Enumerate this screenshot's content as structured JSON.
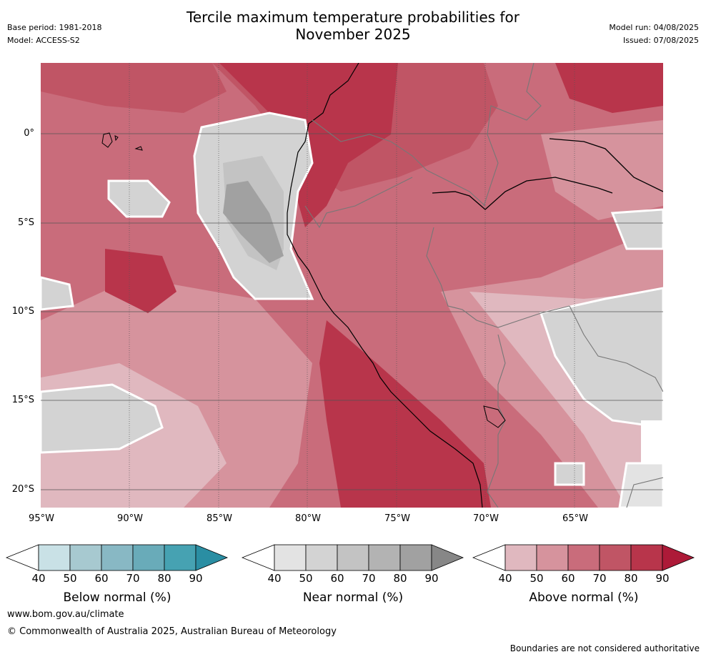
{
  "header": {
    "title_line1": "Tercile maximum temperature probabilities for",
    "title_line2": "November 2025",
    "base_period": "Base period: 1981-2018",
    "model": "Model: ACCESS-S2",
    "model_run": "Model run: 04/08/2025",
    "issued": "Issued: 07/08/2025"
  },
  "axes": {
    "lat_labels": [
      "0°",
      "5°S",
      "10°S",
      "15°S",
      "20°S"
    ],
    "lon_labels": [
      "95°W",
      "90°W",
      "85°W",
      "80°W",
      "75°W",
      "70°W",
      "65°W"
    ]
  },
  "legends": [
    {
      "title": "Below normal (%)",
      "ticks": [
        "40",
        "50",
        "60",
        "70",
        "80",
        "90"
      ],
      "colors": [
        "#ffffff",
        "#c9e1e6",
        "#a7c9d0",
        "#88b8c4",
        "#69abb9",
        "#46a2b2",
        "#2a8ea3"
      ]
    },
    {
      "title": "Near normal (%)",
      "ticks": [
        "40",
        "50",
        "60",
        "70",
        "80",
        "90"
      ],
      "colors": [
        "#ffffff",
        "#e3e3e3",
        "#d3d3d3",
        "#c3c3c3",
        "#b3b3b3",
        "#a1a1a1",
        "#878787"
      ]
    },
    {
      "title": "Above normal (%)",
      "ticks": [
        "40",
        "50",
        "60",
        "70",
        "80",
        "90"
      ],
      "colors": [
        "#ffffff",
        "#e0b8bf",
        "#d6939d",
        "#c96c7b",
        "#c05565",
        "#b8354b",
        "#ad1a38"
      ]
    }
  ],
  "footer": {
    "url": "www.bom.gov.au/climate",
    "copyright": "© Commonwealth of Australia 2025, Australian Bureau of Meteorology",
    "disclaimer": "Boundaries are not considered authoritative"
  }
}
